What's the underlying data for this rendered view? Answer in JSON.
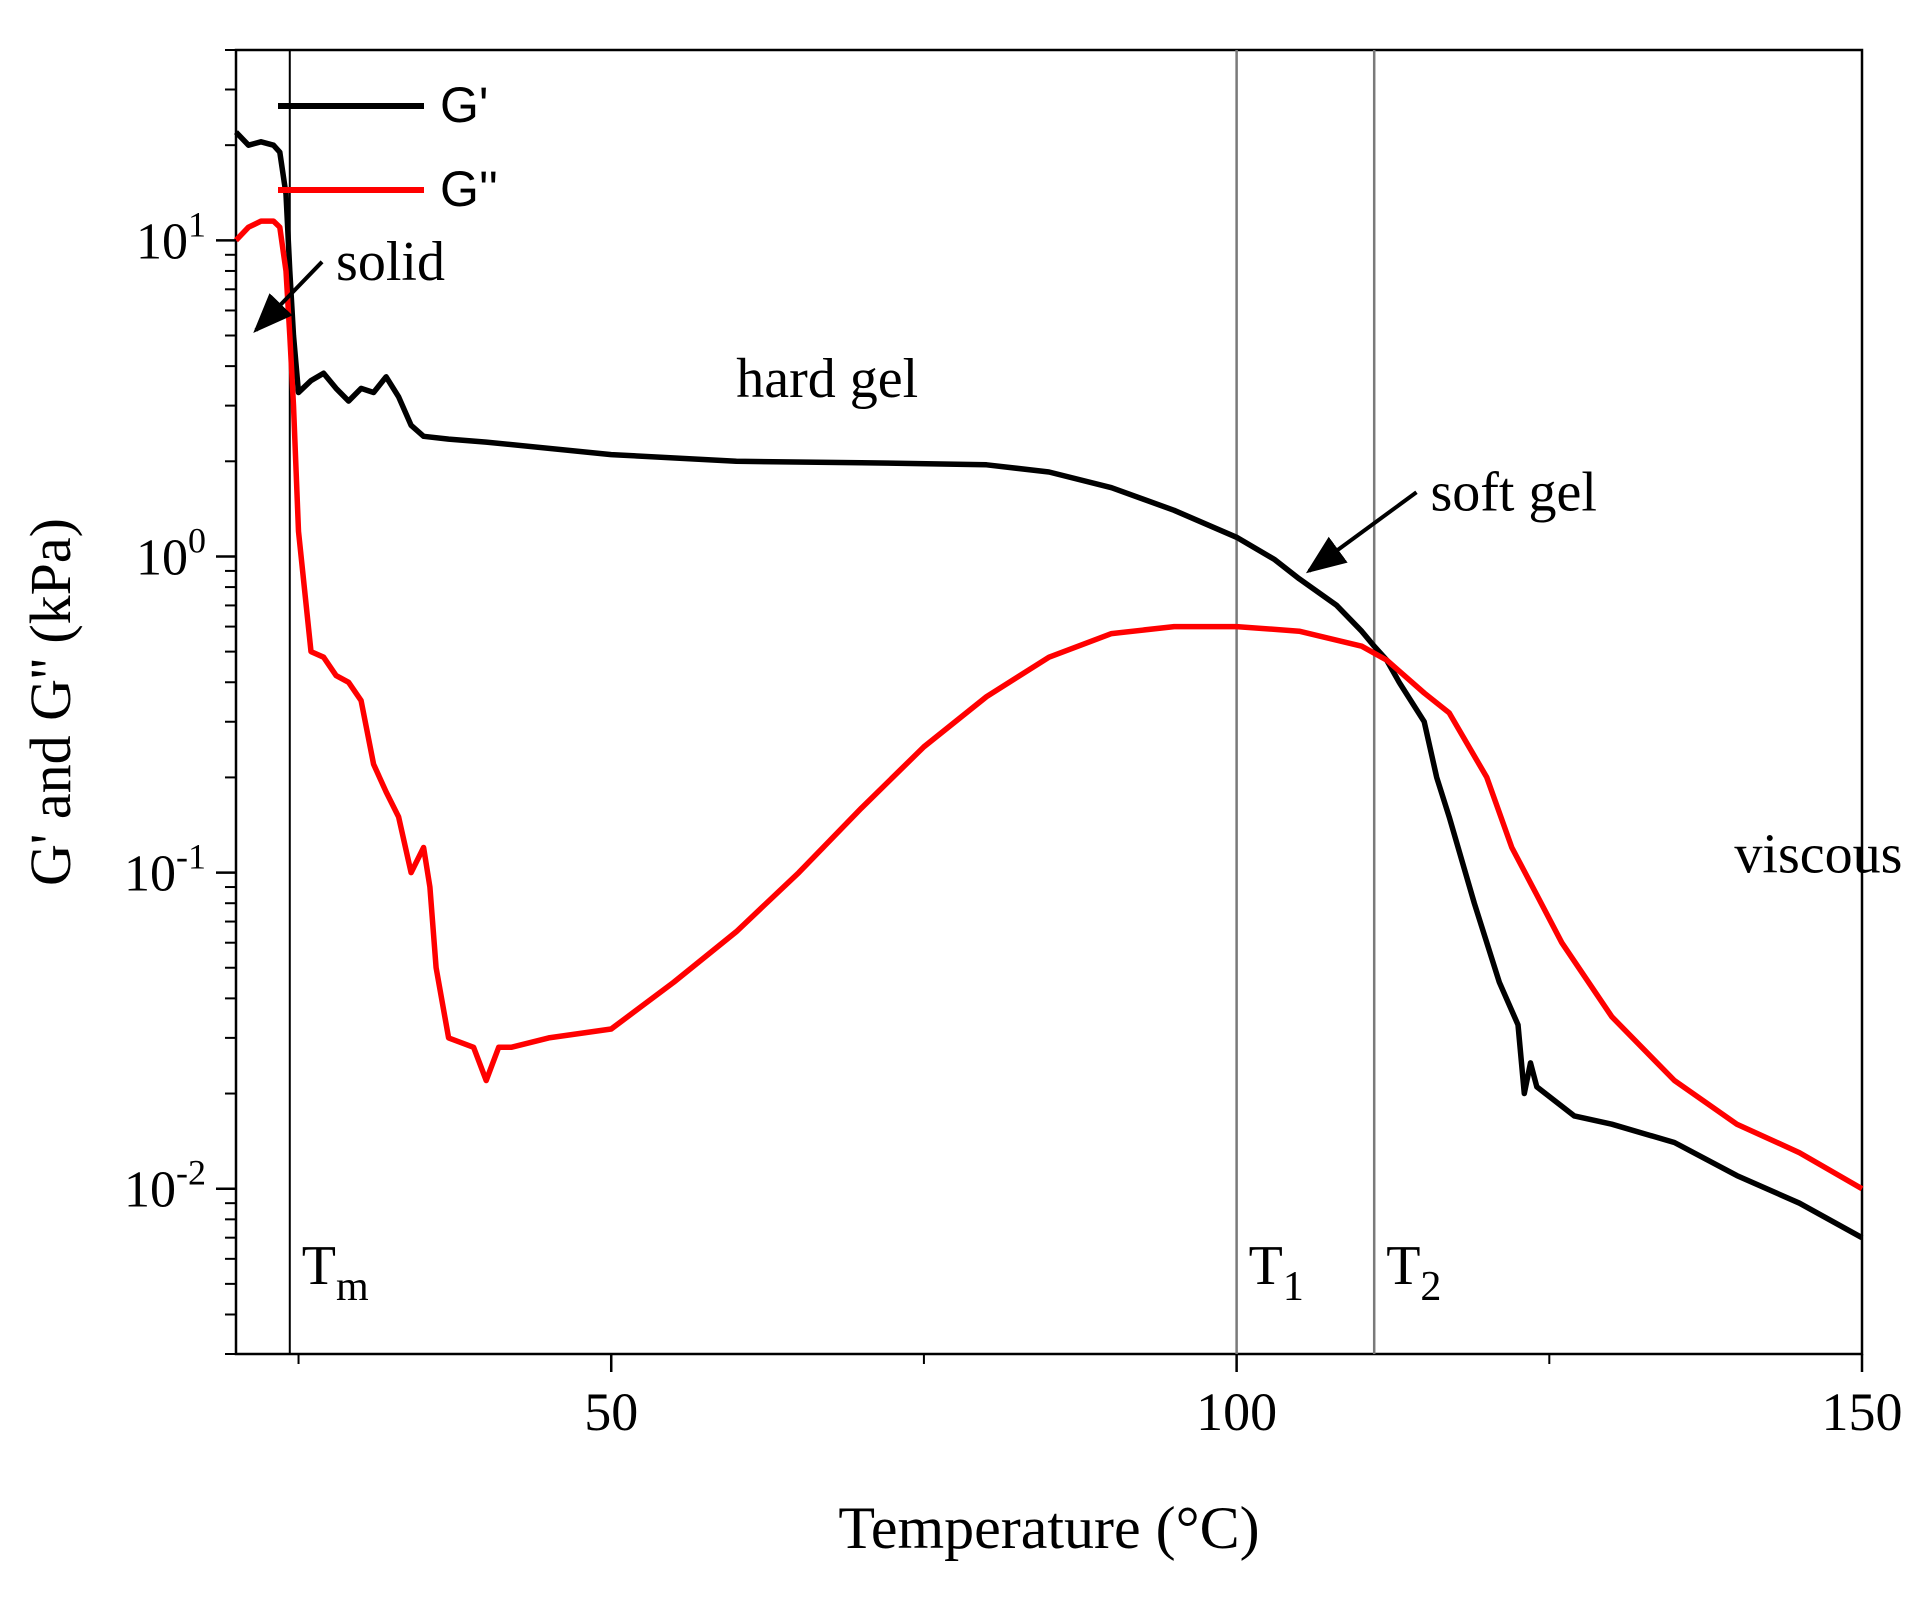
{
  "chart_data": {
    "type": "line",
    "xlabel": "Temperature (°C)",
    "ylabel": "G' and G'' (kPa)",
    "y_scale": "log",
    "xlim": [
      20,
      150
    ],
    "ylim": [
      0.003,
      40
    ],
    "x_ticks": [
      50,
      100,
      150
    ],
    "y_ticks": [
      {
        "value": 10,
        "base": "10",
        "exp": "1"
      },
      {
        "value": 1,
        "base": "10",
        "exp": "0"
      },
      {
        "value": 0.1,
        "base": "10",
        "exp": "-1"
      },
      {
        "value": 0.01,
        "base": "10",
        "exp": "-2"
      }
    ],
    "grid": false,
    "legend": "top-left",
    "series": [
      {
        "name": "G'",
        "color": "#000000",
        "x": [
          20,
          21,
          22,
          23,
          23.5,
          24,
          24.3,
          24.6,
          25,
          26,
          27,
          28,
          29,
          30,
          31,
          32,
          33,
          34,
          35,
          37,
          40,
          50,
          60,
          70,
          80,
          85,
          90,
          95,
          100,
          103,
          105,
          108,
          110,
          111,
          112,
          113,
          115,
          116,
          117,
          119,
          121,
          122.5,
          123,
          123.5,
          124,
          127,
          130,
          135,
          140,
          145,
          150
        ],
        "y": [
          22,
          20,
          20.5,
          20,
          19,
          14,
          8,
          5,
          3.3,
          3.6,
          3.8,
          3.4,
          3.1,
          3.4,
          3.3,
          3.7,
          3.2,
          2.6,
          2.4,
          2.35,
          2.3,
          2.1,
          2.0,
          1.98,
          1.95,
          1.85,
          1.65,
          1.4,
          1.15,
          0.98,
          0.85,
          0.7,
          0.58,
          0.52,
          0.47,
          0.4,
          0.3,
          0.2,
          0.15,
          0.08,
          0.045,
          0.033,
          0.02,
          0.025,
          0.021,
          0.017,
          0.016,
          0.014,
          0.011,
          0.009,
          0.007
        ]
      },
      {
        "name": "G''",
        "color": "#ff0000",
        "x": [
          20,
          21,
          22,
          23,
          23.5,
          24,
          24.3,
          24.6,
          25,
          26,
          27,
          28,
          29,
          30,
          31,
          32,
          33,
          34,
          35,
          35.5,
          36,
          37,
          39,
          40,
          41,
          42,
          45,
          50,
          55,
          60,
          65,
          70,
          75,
          80,
          85,
          90,
          95,
          100,
          105,
          110,
          112,
          115,
          117,
          120,
          122,
          124,
          126,
          130,
          135,
          140,
          145,
          150
        ],
        "y": [
          10,
          11,
          11.5,
          11.5,
          11,
          8,
          5,
          3.0,
          1.2,
          0.5,
          0.48,
          0.42,
          0.4,
          0.35,
          0.22,
          0.18,
          0.15,
          0.1,
          0.12,
          0.09,
          0.05,
          0.03,
          0.028,
          0.022,
          0.028,
          0.028,
          0.03,
          0.032,
          0.045,
          0.065,
          0.1,
          0.16,
          0.25,
          0.36,
          0.48,
          0.57,
          0.6,
          0.6,
          0.58,
          0.52,
          0.47,
          0.37,
          0.32,
          0.2,
          0.12,
          0.085,
          0.06,
          0.035,
          0.022,
          0.016,
          0.013,
          0.01
        ]
      }
    ],
    "vlines": [
      {
        "x": 24.3,
        "label_main": "T",
        "label_sub": "m"
      },
      {
        "x": 100,
        "label_main": "T",
        "label_sub": "1"
      },
      {
        "x": 111,
        "label_main": "T",
        "label_sub": "2"
      }
    ],
    "annotations": [
      {
        "text": "solid",
        "x": 28,
        "y": 7.5,
        "arrow_to_x": 21.6,
        "arrow_to_y": 5.2
      },
      {
        "text": "hard gel",
        "x": 60,
        "y": 3.2
      },
      {
        "text": "soft gel",
        "x": 115.5,
        "y": 1.4,
        "arrow_to_x": 105.8,
        "arrow_to_y": 0.9
      },
      {
        "text": "viscous",
        "x": 139.8,
        "y": 0.1
      }
    ]
  }
}
